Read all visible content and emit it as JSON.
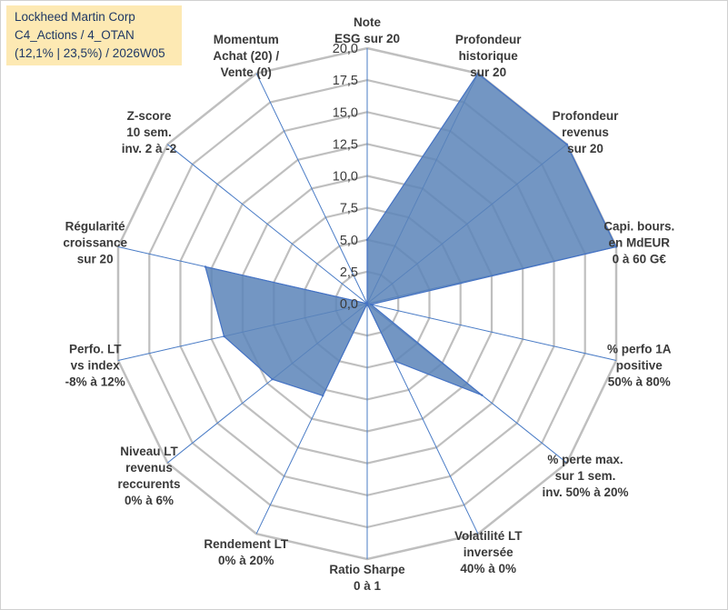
{
  "header": {
    "line1": "Lockheed Martin Corp",
    "line2": "C4_Actions / 4_OTAN",
    "line3": "(12,1% | 23,5%) / 2026W05"
  },
  "colors": {
    "fill": "#5b84b8",
    "stroke": "#4472c4",
    "grid": "#bfbfbf",
    "title_bg": "#fde9b3"
  },
  "chart_data": {
    "type": "radar",
    "rmin": 0,
    "rmax": 20,
    "ticks": [
      "0,0",
      "2,5",
      "5,0",
      "7,5",
      "10,0",
      "12,5",
      "15,0",
      "17,5",
      "20,0"
    ],
    "axes": [
      {
        "label": [
          "Note",
          "ESG sur 20"
        ],
        "value": 5.0
      },
      {
        "label": [
          "Profondeur",
          "historique",
          "sur 20"
        ],
        "value": 20.0
      },
      {
        "label": [
          "Profondeur",
          "revenus",
          "sur 20"
        ],
        "value": 20.0
      },
      {
        "label": [
          "Capi. bours.",
          "en MdEUR",
          "0 à 60 G€"
        ],
        "value": 20.0
      },
      {
        "label": [
          "% perfo 1A",
          "positive",
          "50% à 80%"
        ],
        "value": 0.3
      },
      {
        "label": [
          "% perte max.",
          "sur 1 sem.",
          "inv. 50% à 20%"
        ],
        "value": 11.5
      },
      {
        "label": [
          "Volatilité LT",
          "inversée",
          "40% à 0%"
        ],
        "value": 5.0
      },
      {
        "label": [
          "Ratio Sharpe",
          "0 à 1"
        ],
        "value": 0.0
      },
      {
        "label": [
          "Rendement LT",
          "0% à 20%"
        ],
        "value": 8.0
      },
      {
        "label": [
          "Niveau LT",
          "revenus",
          "reccurents",
          "0% à 6%"
        ],
        "value": 9.5
      },
      {
        "label": [
          "Perfo. LT",
          "vs index",
          "-8% à 12%"
        ],
        "value": 11.5
      },
      {
        "label": [
          "Régularité",
          "croissance",
          "sur 20"
        ],
        "value": 13.0
      },
      {
        "label": [
          "Z-score",
          "10 sem.",
          "inv. 2 à -2"
        ],
        "value": 0.0
      },
      {
        "label": [
          "Momentum",
          "Achat (20) /",
          "Vente (0)"
        ],
        "value": 0.0
      }
    ]
  }
}
